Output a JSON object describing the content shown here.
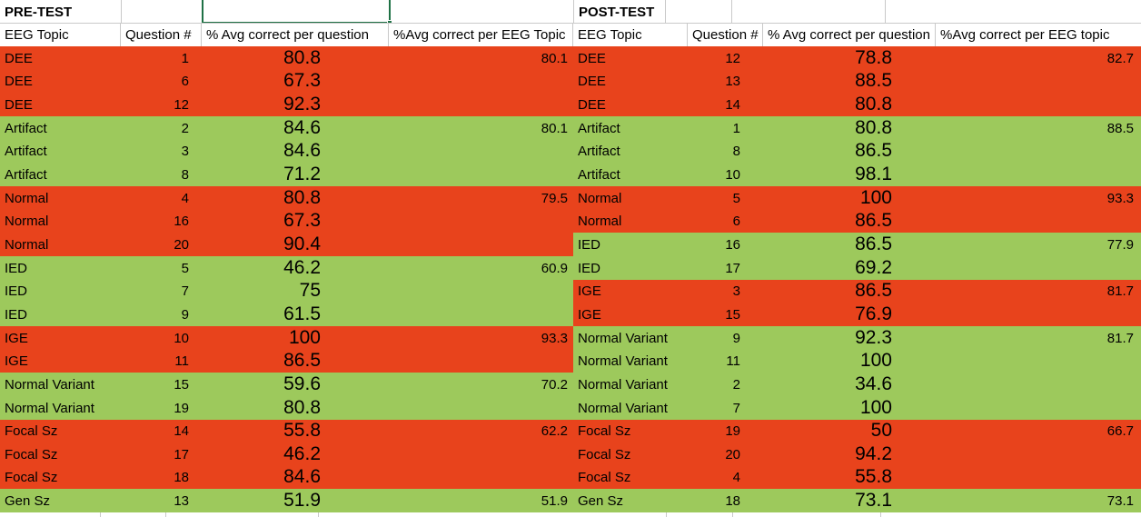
{
  "colors": {
    "orange": "#E8431C",
    "green": "#9DC95C",
    "selection_border": "#1F7145",
    "gridline": "#C9C9C9"
  },
  "pre_test": {
    "title": "PRE-TEST",
    "headers": [
      "EEG Topic",
      "Question #",
      "% Avg correct per question",
      "%Avg correct per EEG Topic"
    ],
    "rows": [
      {
        "topic": "DEE",
        "question": "1",
        "avg_question": "80.8",
        "avg_topic": "80.1",
        "color": "orange"
      },
      {
        "topic": "DEE",
        "question": "6",
        "avg_question": "67.3",
        "avg_topic": "",
        "color": "orange"
      },
      {
        "topic": "DEE",
        "question": "12",
        "avg_question": "92.3",
        "avg_topic": "",
        "color": "orange"
      },
      {
        "topic": "Artifact",
        "question": "2",
        "avg_question": "84.6",
        "avg_topic": "80.1",
        "color": "green"
      },
      {
        "topic": "Artifact",
        "question": "3",
        "avg_question": "84.6",
        "avg_topic": "",
        "color": "green"
      },
      {
        "topic": "Artifact",
        "question": "8",
        "avg_question": "71.2",
        "avg_topic": "",
        "color": "green"
      },
      {
        "topic": "Normal",
        "question": "4",
        "avg_question": "80.8",
        "avg_topic": "79.5",
        "color": "orange"
      },
      {
        "topic": "Normal",
        "question": "16",
        "avg_question": "67.3",
        "avg_topic": "",
        "color": "orange"
      },
      {
        "topic": "Normal",
        "question": "20",
        "avg_question": "90.4",
        "avg_topic": "",
        "color": "orange"
      },
      {
        "topic": "IED",
        "question": "5",
        "avg_question": "46.2",
        "avg_topic": "60.9",
        "color": "green"
      },
      {
        "topic": "IED",
        "question": "7",
        "avg_question": "75",
        "avg_topic": "",
        "color": "green"
      },
      {
        "topic": "IED",
        "question": "9",
        "avg_question": "61.5",
        "avg_topic": "",
        "color": "green"
      },
      {
        "topic": "IGE",
        "question": "10",
        "avg_question": "100",
        "avg_topic": "93.3",
        "color": "orange"
      },
      {
        "topic": "IGE",
        "question": "11",
        "avg_question": "86.5",
        "avg_topic": "",
        "color": "orange"
      },
      {
        "topic": "Normal Variant",
        "question": "15",
        "avg_question": "59.6",
        "avg_topic": "70.2",
        "color": "green"
      },
      {
        "topic": "Normal Variant",
        "question": "19",
        "avg_question": "80.8",
        "avg_topic": "",
        "color": "green"
      },
      {
        "topic": "Focal Sz",
        "question": "14",
        "avg_question": "55.8",
        "avg_topic": "62.2",
        "color": "orange"
      },
      {
        "topic": "Focal Sz",
        "question": "17",
        "avg_question": "46.2",
        "avg_topic": "",
        "color": "orange"
      },
      {
        "topic": "Focal Sz",
        "question": "18",
        "avg_question": "84.6",
        "avg_topic": "",
        "color": "orange"
      },
      {
        "topic": "Gen Sz",
        "question": "13",
        "avg_question": "51.9",
        "avg_topic": "51.9",
        "color": "green"
      }
    ]
  },
  "post_test": {
    "title": "POST-TEST",
    "headers": [
      "EEG Topic",
      "Question #",
      "% Avg correct per question",
      "%Avg correct per EEG topic"
    ],
    "rows": [
      {
        "topic": "DEE",
        "question": "12",
        "avg_question": "78.8",
        "avg_topic": "82.7",
        "color": "orange"
      },
      {
        "topic": "DEE",
        "question": "13",
        "avg_question": "88.5",
        "avg_topic": "",
        "color": "orange"
      },
      {
        "topic": "DEE",
        "question": "14",
        "avg_question": "80.8",
        "avg_topic": "",
        "color": "orange"
      },
      {
        "topic": "Artifact",
        "question": "1",
        "avg_question": "80.8",
        "avg_topic": "88.5",
        "color": "green"
      },
      {
        "topic": "Artifact",
        "question": "8",
        "avg_question": "86.5",
        "avg_topic": "",
        "color": "green"
      },
      {
        "topic": "Artifact",
        "question": "10",
        "avg_question": "98.1",
        "avg_topic": "",
        "color": "green"
      },
      {
        "topic": "Normal",
        "question": "5",
        "avg_question": "100",
        "avg_topic": "93.3",
        "color": "orange"
      },
      {
        "topic": "Normal",
        "question": "6",
        "avg_question": "86.5",
        "avg_topic": "",
        "color": "orange"
      },
      {
        "topic": "IED",
        "question": "16",
        "avg_question": "86.5",
        "avg_topic": "77.9",
        "color": "green"
      },
      {
        "topic": "IED",
        "question": "17",
        "avg_question": "69.2",
        "avg_topic": "",
        "color": "green"
      },
      {
        "topic": "IGE",
        "question": "3",
        "avg_question": "86.5",
        "avg_topic": "81.7",
        "color": "orange"
      },
      {
        "topic": "IGE",
        "question": "15",
        "avg_question": "76.9",
        "avg_topic": "",
        "color": "orange"
      },
      {
        "topic": "Normal Variant",
        "question": "9",
        "avg_question": "92.3",
        "avg_topic": "81.7",
        "color": "green"
      },
      {
        "topic": "Normal Variant",
        "question": "11",
        "avg_question": "100",
        "avg_topic": "",
        "color": "green"
      },
      {
        "topic": "Normal Variant",
        "question": "2",
        "avg_question": "34.6",
        "avg_topic": "",
        "color": "green"
      },
      {
        "topic": "Normal Variant",
        "question": "7",
        "avg_question": "100",
        "avg_topic": "",
        "color": "green"
      },
      {
        "topic": "Focal Sz",
        "question": "19",
        "avg_question": "50",
        "avg_topic": "66.7",
        "color": "orange"
      },
      {
        "topic": "Focal Sz",
        "question": "20",
        "avg_question": "94.2",
        "avg_topic": "",
        "color": "orange"
      },
      {
        "topic": "Focal Sz",
        "question": "4",
        "avg_question": "55.8",
        "avg_topic": "",
        "color": "orange"
      },
      {
        "topic": "Gen Sz",
        "question": "18",
        "avg_question": "73.1",
        "avg_topic": "73.1",
        "color": "green"
      }
    ]
  }
}
